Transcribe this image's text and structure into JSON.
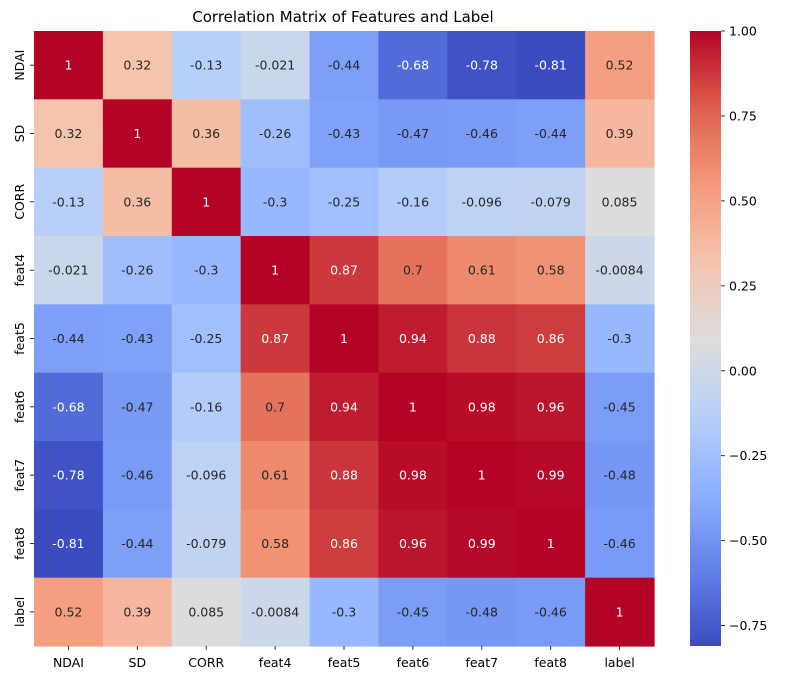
{
  "chart_data": {
    "type": "heatmap",
    "title": "Correlation Matrix of Features and Label",
    "x_categories": [
      "NDAI",
      "SD",
      "CORR",
      "feat4",
      "feat5",
      "feat6",
      "feat7",
      "feat8",
      "label"
    ],
    "y_categories": [
      "NDAI",
      "SD",
      "CORR",
      "feat4",
      "feat5",
      "feat6",
      "feat7",
      "feat8",
      "label"
    ],
    "values": [
      [
        1,
        0.32,
        -0.13,
        -0.021,
        -0.44,
        -0.68,
        -0.78,
        -0.81,
        0.52
      ],
      [
        0.32,
        1,
        0.36,
        -0.26,
        -0.43,
        -0.47,
        -0.46,
        -0.44,
        0.39
      ],
      [
        -0.13,
        0.36,
        1,
        -0.3,
        -0.25,
        -0.16,
        -0.096,
        -0.079,
        0.085
      ],
      [
        -0.021,
        -0.26,
        -0.3,
        1,
        0.87,
        0.7,
        0.61,
        0.58,
        -0.0084
      ],
      [
        -0.44,
        -0.43,
        -0.25,
        0.87,
        1,
        0.94,
        0.88,
        0.86,
        -0.3
      ],
      [
        -0.68,
        -0.47,
        -0.16,
        0.7,
        0.94,
        1,
        0.98,
        0.96,
        -0.45
      ],
      [
        -0.78,
        -0.46,
        -0.096,
        0.61,
        0.88,
        0.98,
        1,
        0.99,
        -0.48
      ],
      [
        -0.81,
        -0.44,
        -0.079,
        0.58,
        0.86,
        0.96,
        0.99,
        1,
        -0.46
      ],
      [
        0.52,
        0.39,
        0.085,
        -0.0084,
        -0.3,
        -0.45,
        -0.48,
        -0.46,
        1
      ]
    ],
    "value_labels": [
      [
        "1",
        "0.32",
        "-0.13",
        "-0.021",
        "-0.44",
        "-0.68",
        "-0.78",
        "-0.81",
        "0.52"
      ],
      [
        "0.32",
        "1",
        "0.36",
        "-0.26",
        "-0.43",
        "-0.47",
        "-0.46",
        "-0.44",
        "0.39"
      ],
      [
        "-0.13",
        "0.36",
        "1",
        "-0.3",
        "-0.25",
        "-0.16",
        "-0.096",
        "-0.079",
        "0.085"
      ],
      [
        "-0.021",
        "-0.26",
        "-0.3",
        "1",
        "0.87",
        "0.7",
        "0.61",
        "0.58",
        "-0.0084"
      ],
      [
        "-0.44",
        "-0.43",
        "-0.25",
        "0.87",
        "1",
        "0.94",
        "0.88",
        "0.86",
        "-0.3"
      ],
      [
        "-0.68",
        "-0.47",
        "-0.16",
        "0.7",
        "0.94",
        "1",
        "0.98",
        "0.96",
        "-0.45"
      ],
      [
        "-0.78",
        "-0.46",
        "-0.096",
        "0.61",
        "0.88",
        "0.98",
        "1",
        "0.99",
        "-0.48"
      ],
      [
        "-0.81",
        "-0.44",
        "-0.079",
        "0.58",
        "0.86",
        "0.96",
        "0.99",
        "1",
        "-0.46"
      ],
      [
        "0.52",
        "0.39",
        "0.085",
        "-0.0084",
        "-0.3",
        "-0.45",
        "-0.48",
        "-0.46",
        "1"
      ]
    ],
    "colormap": "coolwarm",
    "colorbar": {
      "range": [
        -0.81,
        1.0
      ],
      "ticks": [
        1.0,
        0.75,
        0.5,
        0.25,
        0.0,
        -0.25,
        -0.5,
        -0.75
      ],
      "tick_labels": [
        "1.00",
        "0.75",
        "0.50",
        "0.25",
        "0.00",
        "−0.25",
        "−0.50",
        "−0.75"
      ]
    },
    "annotate": true,
    "grid": false
  }
}
